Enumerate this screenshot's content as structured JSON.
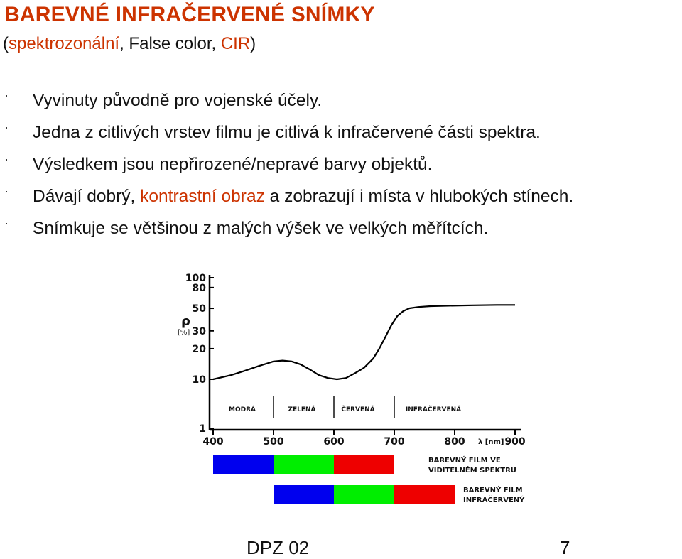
{
  "title": "BAREVNÉ INFRAČERVENÉ SNÍMKY",
  "subtitle": {
    "open": "(",
    "term": "spektrozonální",
    "middle": ", False color, ",
    "abbr": "CIR",
    "close": ")"
  },
  "bullets": [
    {
      "marker": "·",
      "text": "Vyvinuty původně  pro vojenské účely."
    },
    {
      "marker": "·",
      "text": "Jedna z citlivých vrstev filmu je citlivá k infračervené  části spektra."
    },
    {
      "marker": "·",
      "text": "Výsledkem jsou nepřirozené/nepravé barvy objektů."
    },
    {
      "marker": "·",
      "pre": "Dávají dobrý, ",
      "highlight": "kontrastní obraz",
      "post": " a zobrazují i místa v hlubokých stínech."
    },
    {
      "marker": "·",
      "text": "Snímkuje se většinou z malých výšek ve velkých měřítcích."
    }
  ],
  "figure": {
    "ylabel": "ρ",
    "yunit": "[%]",
    "xlabel": "λ [nm]",
    "yticks": [
      {
        "label": "100",
        "value": 100
      },
      {
        "label": "80",
        "value": 80
      },
      {
        "label": "50",
        "value": 50
      },
      {
        "label": "30",
        "value": 30
      },
      {
        "label": "20",
        "value": 20
      },
      {
        "label": "10",
        "value": 10
      },
      {
        "label": "1",
        "value": 1
      }
    ],
    "xticks": [
      "400",
      "500",
      "600",
      "700",
      "800",
      "900"
    ],
    "regions": [
      "MODRÁ",
      "ZELENÁ",
      "ČERVENÁ",
      "INFRAČERVENÁ"
    ],
    "colors": {
      "blue": "#0000ee",
      "green": "#00ee00",
      "red": "#ee0000",
      "axis": "#000000"
    },
    "bands": [
      {
        "label_lines": [
          "BAREVNÝ FILM VE",
          "VIDITELNÉM SPEKTRU"
        ],
        "segments": [
          {
            "from": 400,
            "to": 500,
            "color": "#0000ee"
          },
          {
            "from": 500,
            "to": 600,
            "color": "#00ee00"
          },
          {
            "from": 600,
            "to": 700,
            "color": "#ee0000"
          }
        ]
      },
      {
        "label_lines": [
          "BAREVNÝ FILM",
          "INFRAČERVENÝ"
        ],
        "segments": [
          {
            "from": 500,
            "to": 600,
            "color": "#0000ee"
          },
          {
            "from": 600,
            "to": 700,
            "color": "#00ee00"
          },
          {
            "from": 700,
            "to": 800,
            "color": "#ee0000"
          }
        ]
      }
    ]
  },
  "chart_data": {
    "type": "line",
    "title": "",
    "xlabel": "λ [nm]",
    "ylabel": "ρ [%]",
    "xlim": [
      400,
      900
    ],
    "ylim": [
      1,
      100
    ],
    "y_scale": "log",
    "grid": false,
    "legend": "none",
    "series": [
      {
        "x": [
          400,
          430,
          450,
          475,
          500,
          515,
          530,
          545,
          560,
          575,
          590,
          605,
          620,
          635,
          650,
          665,
          675,
          685,
          695,
          705,
          715,
          725,
          740,
          760,
          790,
          830,
          870,
          900
        ],
        "y": [
          10,
          11,
          12,
          13.5,
          15,
          15.3,
          15,
          14,
          12.5,
          11,
          10.3,
          10,
          10.3,
          11.5,
          13,
          16,
          20,
          26,
          34,
          42,
          47,
          50,
          51.5,
          52.5,
          53,
          53.5,
          54,
          54
        ]
      }
    ]
  },
  "footer": {
    "left": "DPZ 02",
    "right": "7"
  }
}
